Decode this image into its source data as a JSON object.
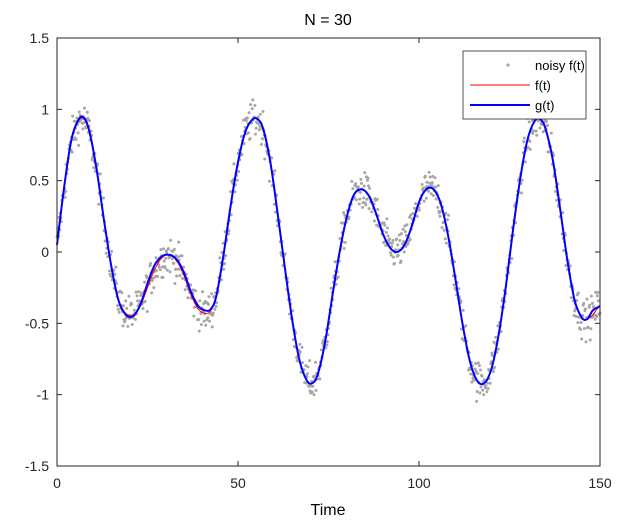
{
  "chart_data": {
    "type": "line",
    "title": "N = 30",
    "xlabel": "Time",
    "ylabel": "",
    "xlim": [
      0,
      150
    ],
    "ylim": [
      -1.5,
      1.5
    ],
    "xticks": [
      0,
      50,
      100,
      150
    ],
    "xtick_labels": [
      "0",
      "50",
      "100",
      "150"
    ],
    "yticks": [
      -1.5,
      -1,
      -0.5,
      0,
      0.5,
      1,
      1.5
    ],
    "ytick_labels": [
      "-1.5",
      "-1",
      "-0.5",
      "0",
      "0.5",
      "1",
      "1.5"
    ],
    "grid": false,
    "legend_position": "top-right",
    "series": [
      {
        "name": "noisy f(t)",
        "style": "scatter",
        "color": "#a6a6a6",
        "noise_amplitude": 0.12,
        "points_per_unit_time": 6.7
      },
      {
        "name": "f(t)",
        "style": "line",
        "color": "#ff0000",
        "x": [
          0,
          2,
          4,
          6,
          7.5,
          9,
          11,
          13,
          15,
          17,
          19,
          21,
          23,
          25,
          27,
          29,
          31,
          33,
          35,
          37,
          39,
          41,
          42.5,
          44,
          46,
          48,
          50,
          52,
          54,
          55.5,
          57,
          59,
          61,
          63,
          65,
          67,
          69,
          70.5,
          72,
          74,
          76,
          78,
          80,
          82,
          84,
          86,
          88,
          90,
          92,
          94,
          96,
          98,
          100,
          102,
          104,
          106,
          108,
          110,
          112,
          114,
          116,
          118,
          120,
          122,
          124,
          126,
          128,
          130,
          132,
          133.5,
          135,
          137,
          139,
          141,
          143,
          145,
          146.5,
          148,
          150
        ],
        "y": [
          0.04,
          0.45,
          0.78,
          0.92,
          0.93,
          0.83,
          0.56,
          0.22,
          -0.1,
          -0.33,
          -0.43,
          -0.44,
          -0.38,
          -0.25,
          -0.12,
          -0.04,
          -0.02,
          -0.06,
          -0.16,
          -0.3,
          -0.4,
          -0.43,
          -0.41,
          -0.31,
          -0.02,
          0.33,
          0.63,
          0.84,
          0.93,
          0.93,
          0.86,
          0.62,
          0.26,
          -0.12,
          -0.48,
          -0.76,
          -0.9,
          -0.92,
          -0.86,
          -0.64,
          -0.32,
          -0.01,
          0.24,
          0.4,
          0.44,
          0.4,
          0.28,
          0.13,
          0.03,
          0.0,
          0.05,
          0.18,
          0.35,
          0.44,
          0.44,
          0.34,
          0.12,
          -0.18,
          -0.5,
          -0.76,
          -0.9,
          -0.92,
          -0.82,
          -0.58,
          -0.24,
          0.16,
          0.52,
          0.79,
          0.92,
          0.93,
          0.86,
          0.64,
          0.3,
          -0.06,
          -0.34,
          -0.46,
          -0.47,
          -0.44,
          -0.37
        ]
      },
      {
        "name": "g(t)",
        "style": "line",
        "color": "#0000ff",
        "x": [
          0,
          2,
          4,
          6,
          7.5,
          9,
          11,
          13,
          15,
          17,
          19,
          21,
          23,
          25,
          27,
          29,
          31,
          33,
          35,
          37,
          39,
          41,
          42.5,
          44,
          46,
          48,
          50,
          52,
          54,
          55.5,
          57,
          59,
          61,
          63,
          65,
          67,
          69,
          70.5,
          72,
          74,
          76,
          78,
          80,
          82,
          84,
          86,
          88,
          90,
          92,
          94,
          96,
          98,
          100,
          102,
          104,
          106,
          108,
          110,
          112,
          114,
          116,
          118,
          120,
          122,
          124,
          126,
          128,
          130,
          132,
          133.5,
          135,
          137,
          139,
          141,
          143,
          145,
          146.5,
          148,
          150
        ],
        "y": [
          0.05,
          0.46,
          0.79,
          0.93,
          0.94,
          0.84,
          0.57,
          0.22,
          -0.1,
          -0.34,
          -0.44,
          -0.45,
          -0.37,
          -0.22,
          -0.09,
          -0.03,
          -0.02,
          -0.05,
          -0.14,
          -0.28,
          -0.38,
          -0.41,
          -0.4,
          -0.31,
          -0.02,
          0.33,
          0.63,
          0.84,
          0.93,
          0.93,
          0.86,
          0.62,
          0.26,
          -0.12,
          -0.48,
          -0.76,
          -0.9,
          -0.92,
          -0.86,
          -0.64,
          -0.32,
          -0.01,
          0.24,
          0.4,
          0.44,
          0.4,
          0.28,
          0.13,
          0.03,
          0.0,
          0.05,
          0.18,
          0.35,
          0.44,
          0.44,
          0.34,
          0.12,
          -0.18,
          -0.5,
          -0.76,
          -0.9,
          -0.92,
          -0.82,
          -0.58,
          -0.24,
          0.16,
          0.52,
          0.79,
          0.92,
          0.93,
          0.86,
          0.64,
          0.3,
          -0.06,
          -0.34,
          -0.46,
          -0.47,
          -0.41,
          -0.38
        ]
      }
    ]
  }
}
